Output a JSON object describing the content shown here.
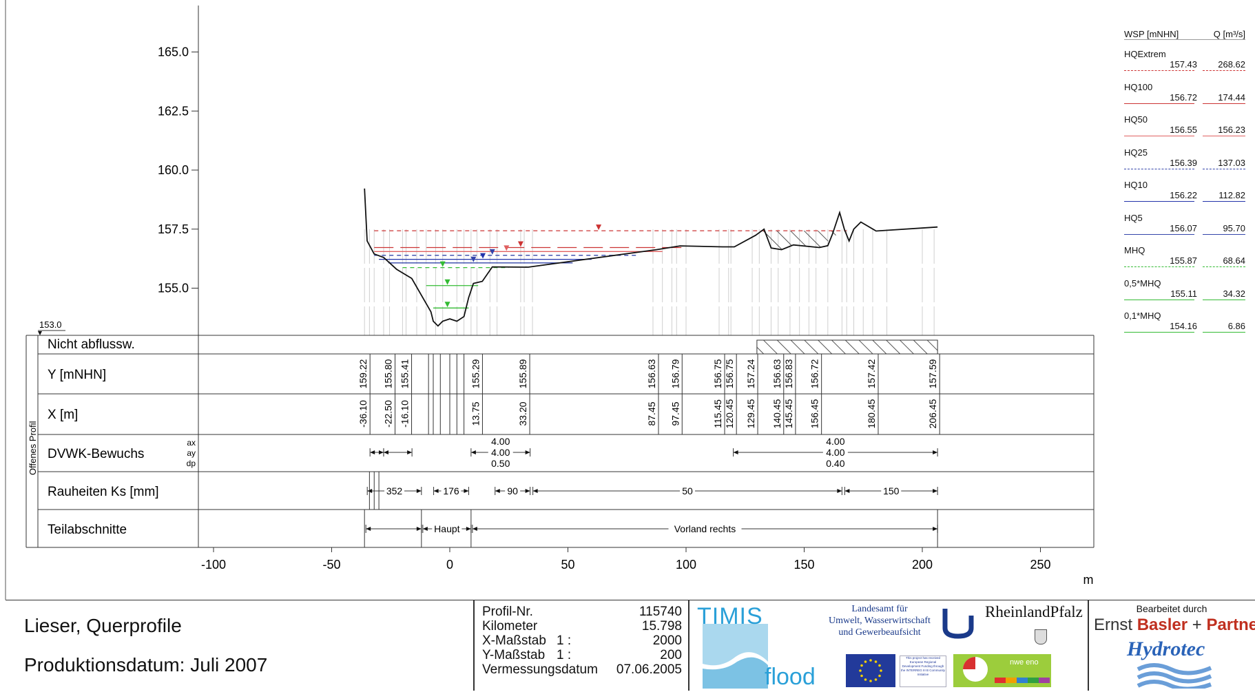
{
  "chart_data": {
    "type": "line",
    "yaxis": {
      "ticks": [
        "165.0",
        "162.5",
        "160.0",
        "157.5",
        "155.0"
      ],
      "ylim": [
        153.0,
        166.0
      ],
      "base_label": "153.0"
    },
    "xaxis": {
      "ticks": [
        "-100",
        "-50",
        "0",
        "50",
        "100",
        "150",
        "200",
        "250"
      ],
      "unit": "m",
      "xlim": [
        -110,
        260
      ]
    },
    "profile": [
      [
        -36.1,
        159.22
      ],
      [
        -35,
        157.0
      ],
      [
        -32,
        156.45
      ],
      [
        -28,
        156.3
      ],
      [
        -22.5,
        155.8
      ],
      [
        -16.1,
        155.41
      ],
      [
        -12,
        154.7
      ],
      [
        -8,
        154.0
      ],
      [
        -7,
        153.6
      ],
      [
        -5,
        153.4
      ],
      [
        -3,
        153.6
      ],
      [
        0,
        153.7
      ],
      [
        3,
        153.6
      ],
      [
        6,
        153.8
      ],
      [
        8,
        154.6
      ],
      [
        10,
        155.2
      ],
      [
        13.75,
        155.29
      ],
      [
        18,
        155.9
      ],
      [
        33.2,
        155.89
      ],
      [
        87.45,
        156.63
      ],
      [
        97.45,
        156.79
      ],
      [
        115.45,
        156.75
      ],
      [
        120.45,
        156.75
      ],
      [
        129.45,
        157.24
      ],
      [
        133,
        157.5
      ],
      [
        136,
        156.7
      ],
      [
        140.45,
        156.63
      ],
      [
        145.45,
        156.83
      ],
      [
        156.45,
        156.72
      ],
      [
        160,
        156.8
      ],
      [
        162,
        157.3
      ],
      [
        165,
        158.2
      ],
      [
        167,
        157.5
      ],
      [
        169,
        157.0
      ],
      [
        171,
        157.5
      ],
      [
        174,
        157.8
      ],
      [
        180.45,
        157.42
      ],
      [
        206.45,
        157.59
      ]
    ],
    "water_levels": [
      {
        "name": "HQExtrem",
        "wsp": 157.43,
        "color": "#cc3333",
        "dash": "6,5",
        "x_from": -32,
        "x_to": 168,
        "marker_x": 63
      },
      {
        "name": "HQ100",
        "wsp": 156.72,
        "color": "#cc3333",
        "dash": "28,10",
        "x_from": -32,
        "x_to": 100,
        "marker_x": 30
      },
      {
        "name": "HQ50",
        "wsp": 156.55,
        "color": "#e06060",
        "dash": "",
        "x_from": -32,
        "x_to": 90,
        "marker_x": 24
      },
      {
        "name": "HQ25",
        "wsp": 156.39,
        "color": "#3344aa",
        "dash": "6,5",
        "x_from": -32,
        "x_to": 80,
        "marker_x": 18
      },
      {
        "name": "HQ10",
        "wsp": 156.22,
        "color": "#2233aa",
        "dash": "",
        "x_from": -30,
        "x_to": 60,
        "marker_x": 14
      },
      {
        "name": "HQ5",
        "wsp": 156.07,
        "color": "#3344aa",
        "dash": "",
        "x_from": -26,
        "x_to": 52,
        "marker_x": 10
      },
      {
        "name": "MHQ",
        "wsp": 155.87,
        "color": "#33bb33",
        "dash": "6,5",
        "x_from": -20,
        "x_to": 25,
        "marker_x": -3
      },
      {
        "name": "0,5*MHQ",
        "wsp": 155.11,
        "color": "#33bb33",
        "dash": "",
        "x_from": -10,
        "x_to": 12,
        "marker_x": -1
      },
      {
        "name": "0,1*MHQ",
        "wsp": 154.16,
        "color": "#33bb33",
        "dash": "",
        "x_from": -7,
        "x_to": 8,
        "marker_x": -1
      }
    ],
    "table_rows": [
      "Nicht abflussw.",
      "Y [mNHN]",
      "X [m]",
      "DVWK-Bewuchs",
      "Rauheiten Ks [mm]",
      "Teilabschnitte"
    ],
    "side_label": "Offenes Profil",
    "dvwk_sub_labels": [
      "ax",
      "ay",
      "dp"
    ],
    "y_values": [
      {
        "x": -36.1,
        "label": "159.22"
      },
      {
        "x": -25.5,
        "label": "155.80"
      },
      {
        "x": -18.5,
        "label": "155.41"
      },
      {
        "x": 11.5,
        "label": "155.29"
      },
      {
        "x": 31.5,
        "label": "155.89"
      },
      {
        "x": 86,
        "label": "156.63"
      },
      {
        "x": 96,
        "label": "156.79"
      },
      {
        "x": 114,
        "label": "156.75"
      },
      {
        "x": 119,
        "label": "156.75"
      },
      {
        "x": 128,
        "label": "157.24"
      },
      {
        "x": 139,
        "label": "156.63"
      },
      {
        "x": 144,
        "label": "156.83"
      },
      {
        "x": 155,
        "label": "156.72"
      },
      {
        "x": 179,
        "label": "157.42"
      },
      {
        "x": 205,
        "label": "157.59"
      }
    ],
    "x_values": [
      {
        "x": -36.1,
        "label": "-36.10"
      },
      {
        "x": -25.5,
        "label": "-22.50"
      },
      {
        "x": -18.5,
        "label": "-16.10"
      },
      {
        "x": 11.5,
        "label": "13.75"
      },
      {
        "x": 31.5,
        "label": "33.20"
      },
      {
        "x": 86,
        "label": "87.45"
      },
      {
        "x": 96,
        "label": "97.45"
      },
      {
        "x": 114,
        "label": "115.45"
      },
      {
        "x": 119,
        "label": "120.45"
      },
      {
        "x": 128,
        "label": "129.45"
      },
      {
        "x": 139,
        "label": "140.45"
      },
      {
        "x": 144,
        "label": "145.45"
      },
      {
        "x": 155,
        "label": "156.45"
      },
      {
        "x": 179,
        "label": "180.45"
      },
      {
        "x": 205,
        "label": "206.45"
      }
    ],
    "dvwk_left": {
      "ax": "4.00",
      "ay": "4.00",
      "dp": "0.50",
      "x_from": 9,
      "x_to": 34
    },
    "dvwk_right": {
      "ax": "4.00",
      "ay": "4.00",
      "dp": "0.40",
      "x_from": 120,
      "x_to": 206.45
    },
    "rauheiten": [
      {
        "label": "352",
        "x_from": -36.1,
        "x_to": -12
      },
      {
        "label": "176",
        "x_from": -8,
        "x_to": 8
      },
      {
        "label": "90",
        "x_from": 18,
        "x_to": 34
      },
      {
        "label": "50",
        "x_from": 34,
        "x_to": 166
      },
      {
        "label": "150",
        "x_from": 166,
        "x_to": 206.45
      }
    ],
    "teilabschnitte": [
      {
        "label": "",
        "x_from": -36.1,
        "x_to": -12
      },
      {
        "label": "Haupt",
        "x_from": -12,
        "x_to": 9
      },
      {
        "label": "Vorland rechts",
        "x_from": 9,
        "x_to": 206.45
      }
    ],
    "nicht_abfluss": {
      "x_from": 130,
      "x_to": 206.45
    },
    "ineffective_top": {
      "x_from": 131,
      "x_to": 166
    }
  },
  "legend": {
    "header_left": "WSP [mNHN]",
    "header_right": "Q [m³/s]",
    "items": [
      {
        "name": "HQExtrem",
        "wsp": "157.43",
        "q": "268.62",
        "color": "#cc3333",
        "style": "dashed"
      },
      {
        "name": "HQ100",
        "wsp": "156.72",
        "q": "174.44",
        "color": "#cc3333",
        "style": "solid"
      },
      {
        "name": "HQ50",
        "wsp": "156.55",
        "q": "156.23",
        "color": "#e06060",
        "style": "solid"
      },
      {
        "name": "HQ25",
        "wsp": "156.39",
        "q": "137.03",
        "color": "#3344aa",
        "style": "dashed"
      },
      {
        "name": "HQ10",
        "wsp": "156.22",
        "q": "112.82",
        "color": "#2233aa",
        "style": "solid"
      },
      {
        "name": "HQ5",
        "wsp": "156.07",
        "q": "95.70",
        "color": "#3344aa",
        "style": "solid"
      },
      {
        "name": "MHQ",
        "wsp": "155.87",
        "q": "68.64",
        "color": "#33bb33",
        "style": "dashed"
      },
      {
        "name": "0,5*MHQ",
        "wsp": "155.11",
        "q": "34.32",
        "color": "#33bb33",
        "style": "solid"
      },
      {
        "name": "0,1*MHQ",
        "wsp": "154.16",
        "q": "6.86",
        "color": "#33bb33",
        "style": "solid"
      }
    ]
  },
  "footer": {
    "title": "Lieser, Querprofile",
    "date": "Produktionsdatum: Juli 2007",
    "meta": [
      {
        "label": "Profil-Nr.",
        "mid": "",
        "value": "115740"
      },
      {
        "label": "Kilometer",
        "mid": "",
        "value": "15.798"
      },
      {
        "label": "X-Maßstab",
        "mid": "1 :",
        "value": "2000"
      },
      {
        "label": "Y-Maßstab",
        "mid": "1 :",
        "value": "200"
      },
      {
        "label": "Vermessungsdatum",
        "mid": "",
        "value": "07.06.2005"
      }
    ],
    "timis_logo": "TIMIS",
    "flood_logo": "flood",
    "lfu_text": [
      "Landesamt für",
      "Umwelt, Wasserwirtschaft",
      "und Gewerbeaufsicht"
    ],
    "rlp_text": "RheinlandPfalz",
    "bearbeitet": "Bearbeitet durch",
    "ebp_1": "Ernst ",
    "ebp_2": "Basler",
    "ebp_3": " + ",
    "ebp_4": "Partner",
    "hydrotec": "Hydrotec",
    "interreg_text": "nwe eno",
    "eu_fund_text": "This project has received European Regional Development Funding through the INTERREG III B Community Initiative"
  }
}
